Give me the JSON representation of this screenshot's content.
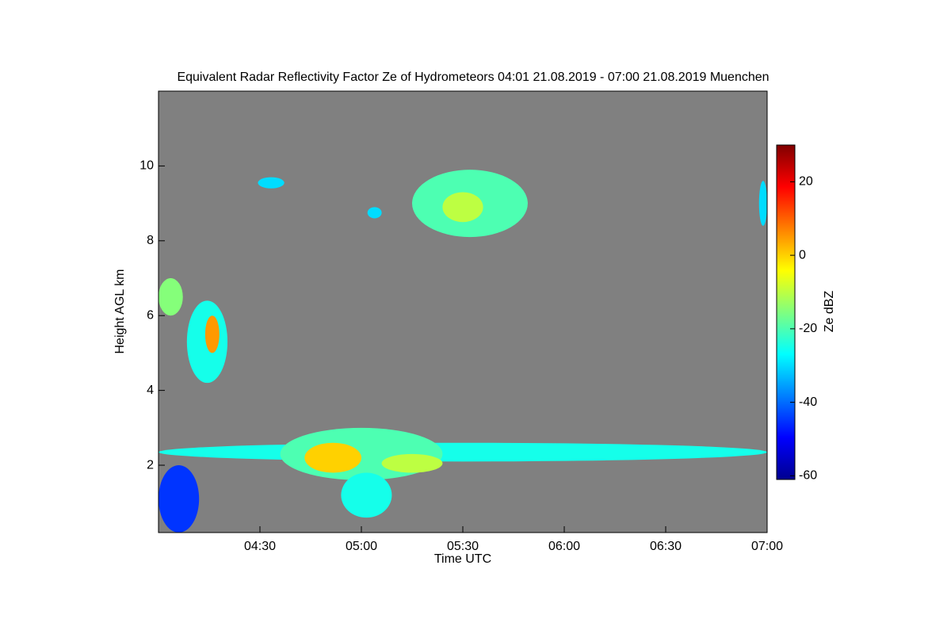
{
  "chart_data": {
    "type": "heatmap",
    "title": "Equivalent Radar Reflectivity Factor Ze of Hydrometeors   04:01 21.08.2019 - 07:00 21.08.2019 Muenchen",
    "x_label": "Time UTC",
    "y_label": "Height AGL km",
    "colorbar_label": "Ze dBZ",
    "colormap": "jet",
    "background": "#808080",
    "xlim": [
      4.0,
      7.0
    ],
    "xticks": [
      {
        "value": 4.5,
        "label": "04:30"
      },
      {
        "value": 5.0,
        "label": "05:00"
      },
      {
        "value": 5.5,
        "label": "05:30"
      },
      {
        "value": 6.0,
        "label": "06:00"
      },
      {
        "value": 6.5,
        "label": "06:30"
      },
      {
        "value": 7.0,
        "label": "07:00"
      }
    ],
    "ylim": [
      0.2,
      12
    ],
    "yticks": [
      2,
      4,
      6,
      8,
      10
    ],
    "clim": [
      -61,
      30
    ],
    "cticks": [
      -60,
      -40,
      -20,
      0,
      20
    ],
    "cells": [
      {
        "x0": 4.0,
        "x1": 7.0,
        "y0": 2.1,
        "y1": 2.6,
        "value": -25
      },
      {
        "x0": 4.0,
        "x1": 4.2,
        "y0": 0.2,
        "y1": 2.0,
        "value": -45
      },
      {
        "x0": 4.6,
        "x1": 5.4,
        "y0": 1.6,
        "y1": 3.0,
        "value": -20
      },
      {
        "x0": 4.9,
        "x1": 5.15,
        "y0": 0.6,
        "y1": 1.8,
        "value": -25
      },
      {
        "x0": 5.1,
        "x1": 5.4,
        "y0": 1.8,
        "y1": 2.3,
        "value": -10
      },
      {
        "x0": 4.72,
        "x1": 5.0,
        "y0": 1.8,
        "y1": 2.6,
        "value": 0
      },
      {
        "x0": 4.0,
        "x1": 4.12,
        "y0": 6.0,
        "y1": 7.0,
        "value": -15
      },
      {
        "x0": 4.14,
        "x1": 4.34,
        "y0": 4.2,
        "y1": 6.4,
        "value": -25
      },
      {
        "x0": 4.23,
        "x1": 4.3,
        "y0": 5.0,
        "y1": 6.0,
        "value": 5
      },
      {
        "x0": 4.49,
        "x1": 4.62,
        "y0": 9.4,
        "y1": 9.7,
        "value": -30
      },
      {
        "x0": 5.03,
        "x1": 5.1,
        "y0": 8.6,
        "y1": 8.9,
        "value": -30
      },
      {
        "x0": 5.25,
        "x1": 5.82,
        "y0": 8.1,
        "y1": 9.9,
        "value": -20
      },
      {
        "x0": 5.4,
        "x1": 5.6,
        "y0": 8.5,
        "y1": 9.3,
        "value": -10
      },
      {
        "x0": 6.96,
        "x1": 7.0,
        "y0": 8.4,
        "y1": 9.6,
        "value": -30
      }
    ]
  }
}
